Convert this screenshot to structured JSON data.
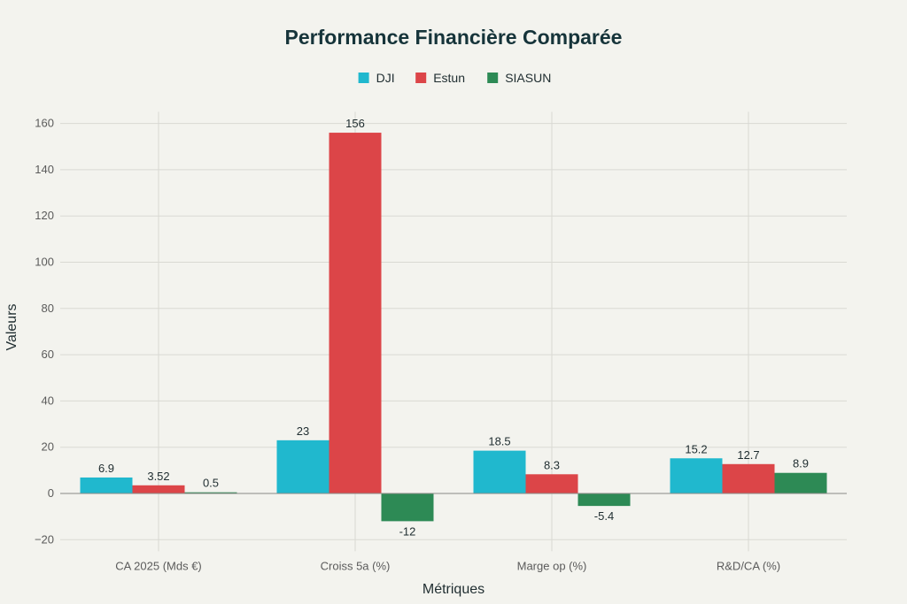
{
  "chart_data": {
    "type": "bar",
    "title": "Performance Financière Comparée",
    "xlabel": "Métriques",
    "ylabel": "Valeurs",
    "categories": [
      "CA 2025 (Mds €)",
      "Croiss 5a (%)",
      "Marge op (%)",
      "R&D/CA (%)"
    ],
    "series": [
      {
        "name": "DJI",
        "color": "#20b8ce",
        "values": [
          6.9,
          23,
          18.5,
          15.2
        ],
        "labels": [
          "6.9",
          "23",
          "18.5",
          "15.2"
        ]
      },
      {
        "name": "Estun",
        "color": "#dc4548",
        "values": [
          3.52,
          156,
          8.3,
          12.7
        ],
        "labels": [
          "3.52",
          "156",
          "8.3",
          "12.7"
        ]
      },
      {
        "name": "SIASUN",
        "color": "#2d8a55",
        "values": [
          0.5,
          -12,
          -5.4,
          8.9
        ],
        "labels": [
          "0.5",
          "-12",
          "-5.4",
          "8.9"
        ]
      }
    ],
    "ylim": [
      -25,
      165
    ],
    "yticks": [
      -20,
      0,
      20,
      40,
      60,
      80,
      100,
      120,
      140,
      160
    ],
    "ytick_labels": [
      "−20",
      "0",
      "20",
      "40",
      "60",
      "80",
      "100",
      "120",
      "140",
      "160"
    ],
    "grid": true,
    "legend": "top-center"
  }
}
